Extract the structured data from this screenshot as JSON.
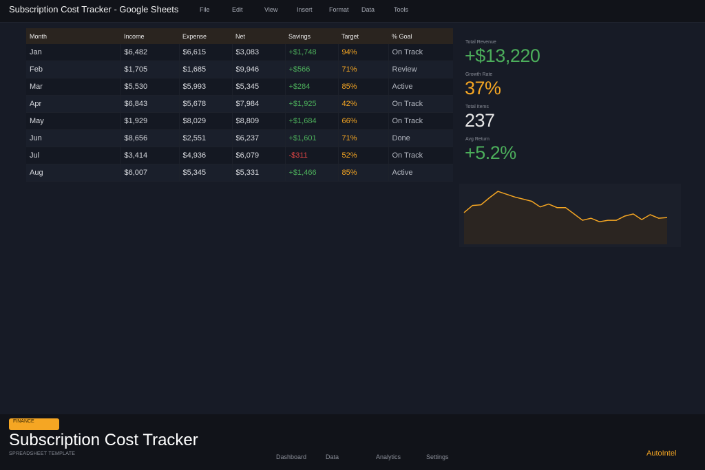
{
  "header": {
    "title": "Subscription Cost Tracker - Google Sheets",
    "menu": [
      "File",
      "Edit",
      "View",
      "Insert",
      "Format",
      "Data",
      "Tools"
    ]
  },
  "table": {
    "columns": [
      "Month",
      "Income",
      "Expense",
      "Net",
      "Savings",
      "Target",
      "% Goal"
    ],
    "rows": [
      [
        "Jan",
        "$6,482",
        "$6,615",
        "$3,083",
        "+$1,748",
        "94%",
        "On Track"
      ],
      [
        "Feb",
        "$1,705",
        "$1,685",
        "$9,946",
        "+$566",
        "71%",
        "Review"
      ],
      [
        "Mar",
        "$5,530",
        "$5,993",
        "$5,345",
        "+$284",
        "85%",
        "Active"
      ],
      [
        "Apr",
        "$6,843",
        "$5,678",
        "$7,984",
        "+$1,925",
        "42%",
        "On Track"
      ],
      [
        "May",
        "$1,929",
        "$8,029",
        "$8,809",
        "+$1,684",
        "66%",
        "On Track"
      ],
      [
        "Jun",
        "$8,656",
        "$2,551",
        "$6,237",
        "+$1,601",
        "71%",
        "Done"
      ],
      [
        "Jul",
        "$3,414",
        "$4,936",
        "$6,079",
        "-$311",
        "52%",
        "On Track"
      ],
      [
        "Aug",
        "$6,007",
        "$5,345",
        "$5,331",
        "+$1,466",
        "85%",
        "Active"
      ]
    ]
  },
  "kpis": [
    {
      "label": "Total Revenue",
      "value": "+$13,220",
      "color": "#4cae5b"
    },
    {
      "label": "Growth Rate",
      "value": "37%",
      "color": "#f5a623"
    },
    {
      "label": "Total Items",
      "value": "237",
      "color": "#e6e6e6"
    },
    {
      "label": "Avg Return",
      "value": "+5.2%",
      "color": "#4cae5b"
    }
  ],
  "sparkline": {
    "values": [
      45,
      55,
      56,
      66,
      75,
      71,
      67,
      64,
      61,
      53,
      57,
      52,
      52,
      43,
      34,
      37,
      32,
      34,
      34,
      40,
      43,
      35,
      42,
      37,
      38
    ],
    "line_color": "#f5a623",
    "fill_color": "#2b2521"
  },
  "footer": {
    "badge": "FINANCE",
    "title": "Subscription Cost Tracker",
    "subtitle": "SPREADSHEET TEMPLATE",
    "nav": [
      "Dashboard",
      "Data",
      "Analytics",
      "Settings"
    ],
    "brand": "AutoIntel"
  }
}
